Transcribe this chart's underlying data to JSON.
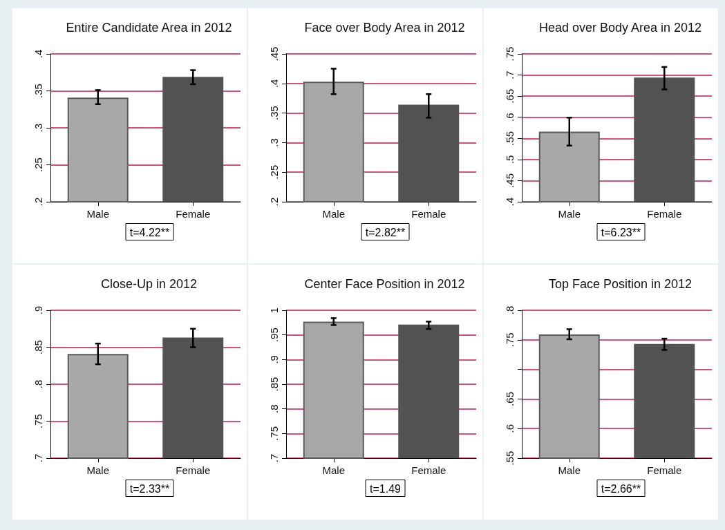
{
  "chart_data": [
    {
      "type": "bar",
      "title": "Entire Candidate Area in 2012",
      "categories": [
        "Male",
        "Female"
      ],
      "values": [
        0.341,
        0.369
      ],
      "colors": [
        "#a8a8a8",
        "#525252"
      ],
      "errors": [
        [
          0.332,
          0.351
        ],
        [
          0.359,
          0.378
        ]
      ],
      "ylim": [
        0.2,
        0.4
      ],
      "yticks": [
        {
          "value": 0.2,
          "label": ".2"
        },
        {
          "value": 0.25,
          "label": ".25"
        },
        {
          "value": 0.3,
          "label": ".3"
        },
        {
          "value": 0.35,
          "label": ".35"
        },
        {
          "value": 0.4,
          "label": ".4"
        }
      ],
      "grid": "y",
      "annotations": [
        "t=4.22**"
      ]
    },
    {
      "type": "bar",
      "title": "Face over Body Area in 2012",
      "categories": [
        "Male",
        "Female"
      ],
      "values": [
        0.403,
        0.364
      ],
      "colors": [
        "#a8a8a8",
        "#525252"
      ],
      "errors": [
        [
          0.382,
          0.425
        ],
        [
          0.342,
          0.382
        ]
      ],
      "ylim": [
        0.2,
        0.45
      ],
      "yticks": [
        {
          "value": 0.2,
          "label": ".2"
        },
        {
          "value": 0.25,
          "label": ".25"
        },
        {
          "value": 0.3,
          "label": ".3"
        },
        {
          "value": 0.35,
          "label": ".35"
        },
        {
          "value": 0.4,
          "label": ".4"
        },
        {
          "value": 0.45,
          "label": ".45"
        }
      ],
      "grid": "y",
      "annotations": [
        "t=2.82**"
      ]
    },
    {
      "type": "bar",
      "title": "Head over Body Area in 2012",
      "categories": [
        "Male",
        "Female"
      ],
      "values": [
        0.566,
        0.694
      ],
      "colors": [
        "#a8a8a8",
        "#525252"
      ],
      "errors": [
        [
          0.533,
          0.599
        ],
        [
          0.666,
          0.719
        ]
      ],
      "ylim": [
        0.4,
        0.75
      ],
      "yticks": [
        {
          "value": 0.4,
          "label": ".4"
        },
        {
          "value": 0.45,
          "label": ".45"
        },
        {
          "value": 0.5,
          "label": ".5"
        },
        {
          "value": 0.55,
          "label": ".55"
        },
        {
          "value": 0.6,
          "label": ".6"
        },
        {
          "value": 0.65,
          "label": ".65"
        },
        {
          "value": 0.7,
          "label": ".7"
        },
        {
          "value": 0.75,
          "label": ".75"
        }
      ],
      "grid": "y",
      "annotations": [
        "t=6.23**"
      ]
    },
    {
      "type": "bar",
      "title": "Close-Up in 2012",
      "categories": [
        "Male",
        "Female"
      ],
      "values": [
        0.841,
        0.863
      ],
      "colors": [
        "#a8a8a8",
        "#525252"
      ],
      "errors": [
        [
          0.827,
          0.855
        ],
        [
          0.85,
          0.875
        ]
      ],
      "ylim": [
        0.7,
        0.9
      ],
      "yticks": [
        {
          "value": 0.7,
          "label": ".7"
        },
        {
          "value": 0.75,
          "label": ".75"
        },
        {
          "value": 0.8,
          "label": ".8"
        },
        {
          "value": 0.85,
          "label": ".85"
        },
        {
          "value": 0.9,
          "label": ".9"
        }
      ],
      "grid": "y",
      "annotations": [
        "t=2.33**"
      ]
    },
    {
      "type": "bar",
      "title": "Center Face Position in 2012",
      "categories": [
        "Male",
        "Female"
      ],
      "values": [
        0.977,
        0.971
      ],
      "colors": [
        "#a8a8a8",
        "#525252"
      ],
      "errors": [
        [
          0.97,
          0.984
        ],
        [
          0.962,
          0.977
        ]
      ],
      "ylim": [
        0.7,
        1
      ],
      "yticks": [
        {
          "value": 0.7,
          "label": ".7"
        },
        {
          "value": 0.75,
          "label": ".75"
        },
        {
          "value": 0.8,
          "label": ".8"
        },
        {
          "value": 0.85,
          "label": ".85"
        },
        {
          "value": 0.9,
          "label": ".9"
        },
        {
          "value": 0.95,
          "label": ".95"
        },
        1
      ],
      "grid": "y",
      "annotations": [
        "t=1.49"
      ]
    },
    {
      "type": "bar",
      "title": "Top Face Position in 2012",
      "categories": [
        "Male",
        "Female"
      ],
      "values": [
        0.759,
        0.743
      ],
      "colors": [
        "#a8a8a8",
        "#525252"
      ],
      "errors": [
        [
          0.751,
          0.768
        ],
        [
          0.733,
          0.752
        ]
      ],
      "ylim": [
        0.55,
        0.8
      ],
      "yticks": [
        {
          "value": 0.55,
          "label": ".55"
        },
        {
          "value": 0.6,
          "label": ".6"
        },
        {
          "value": 0.65,
          "label": ".65"
        },
        {
          "value": 0.7,
          "label": null
        },
        {
          "value": 0.75,
          "label": ".75"
        },
        {
          "value": 0.8,
          "label": ".8"
        }
      ],
      "grid": "y",
      "annotations": [
        "t=2.66**"
      ]
    }
  ]
}
